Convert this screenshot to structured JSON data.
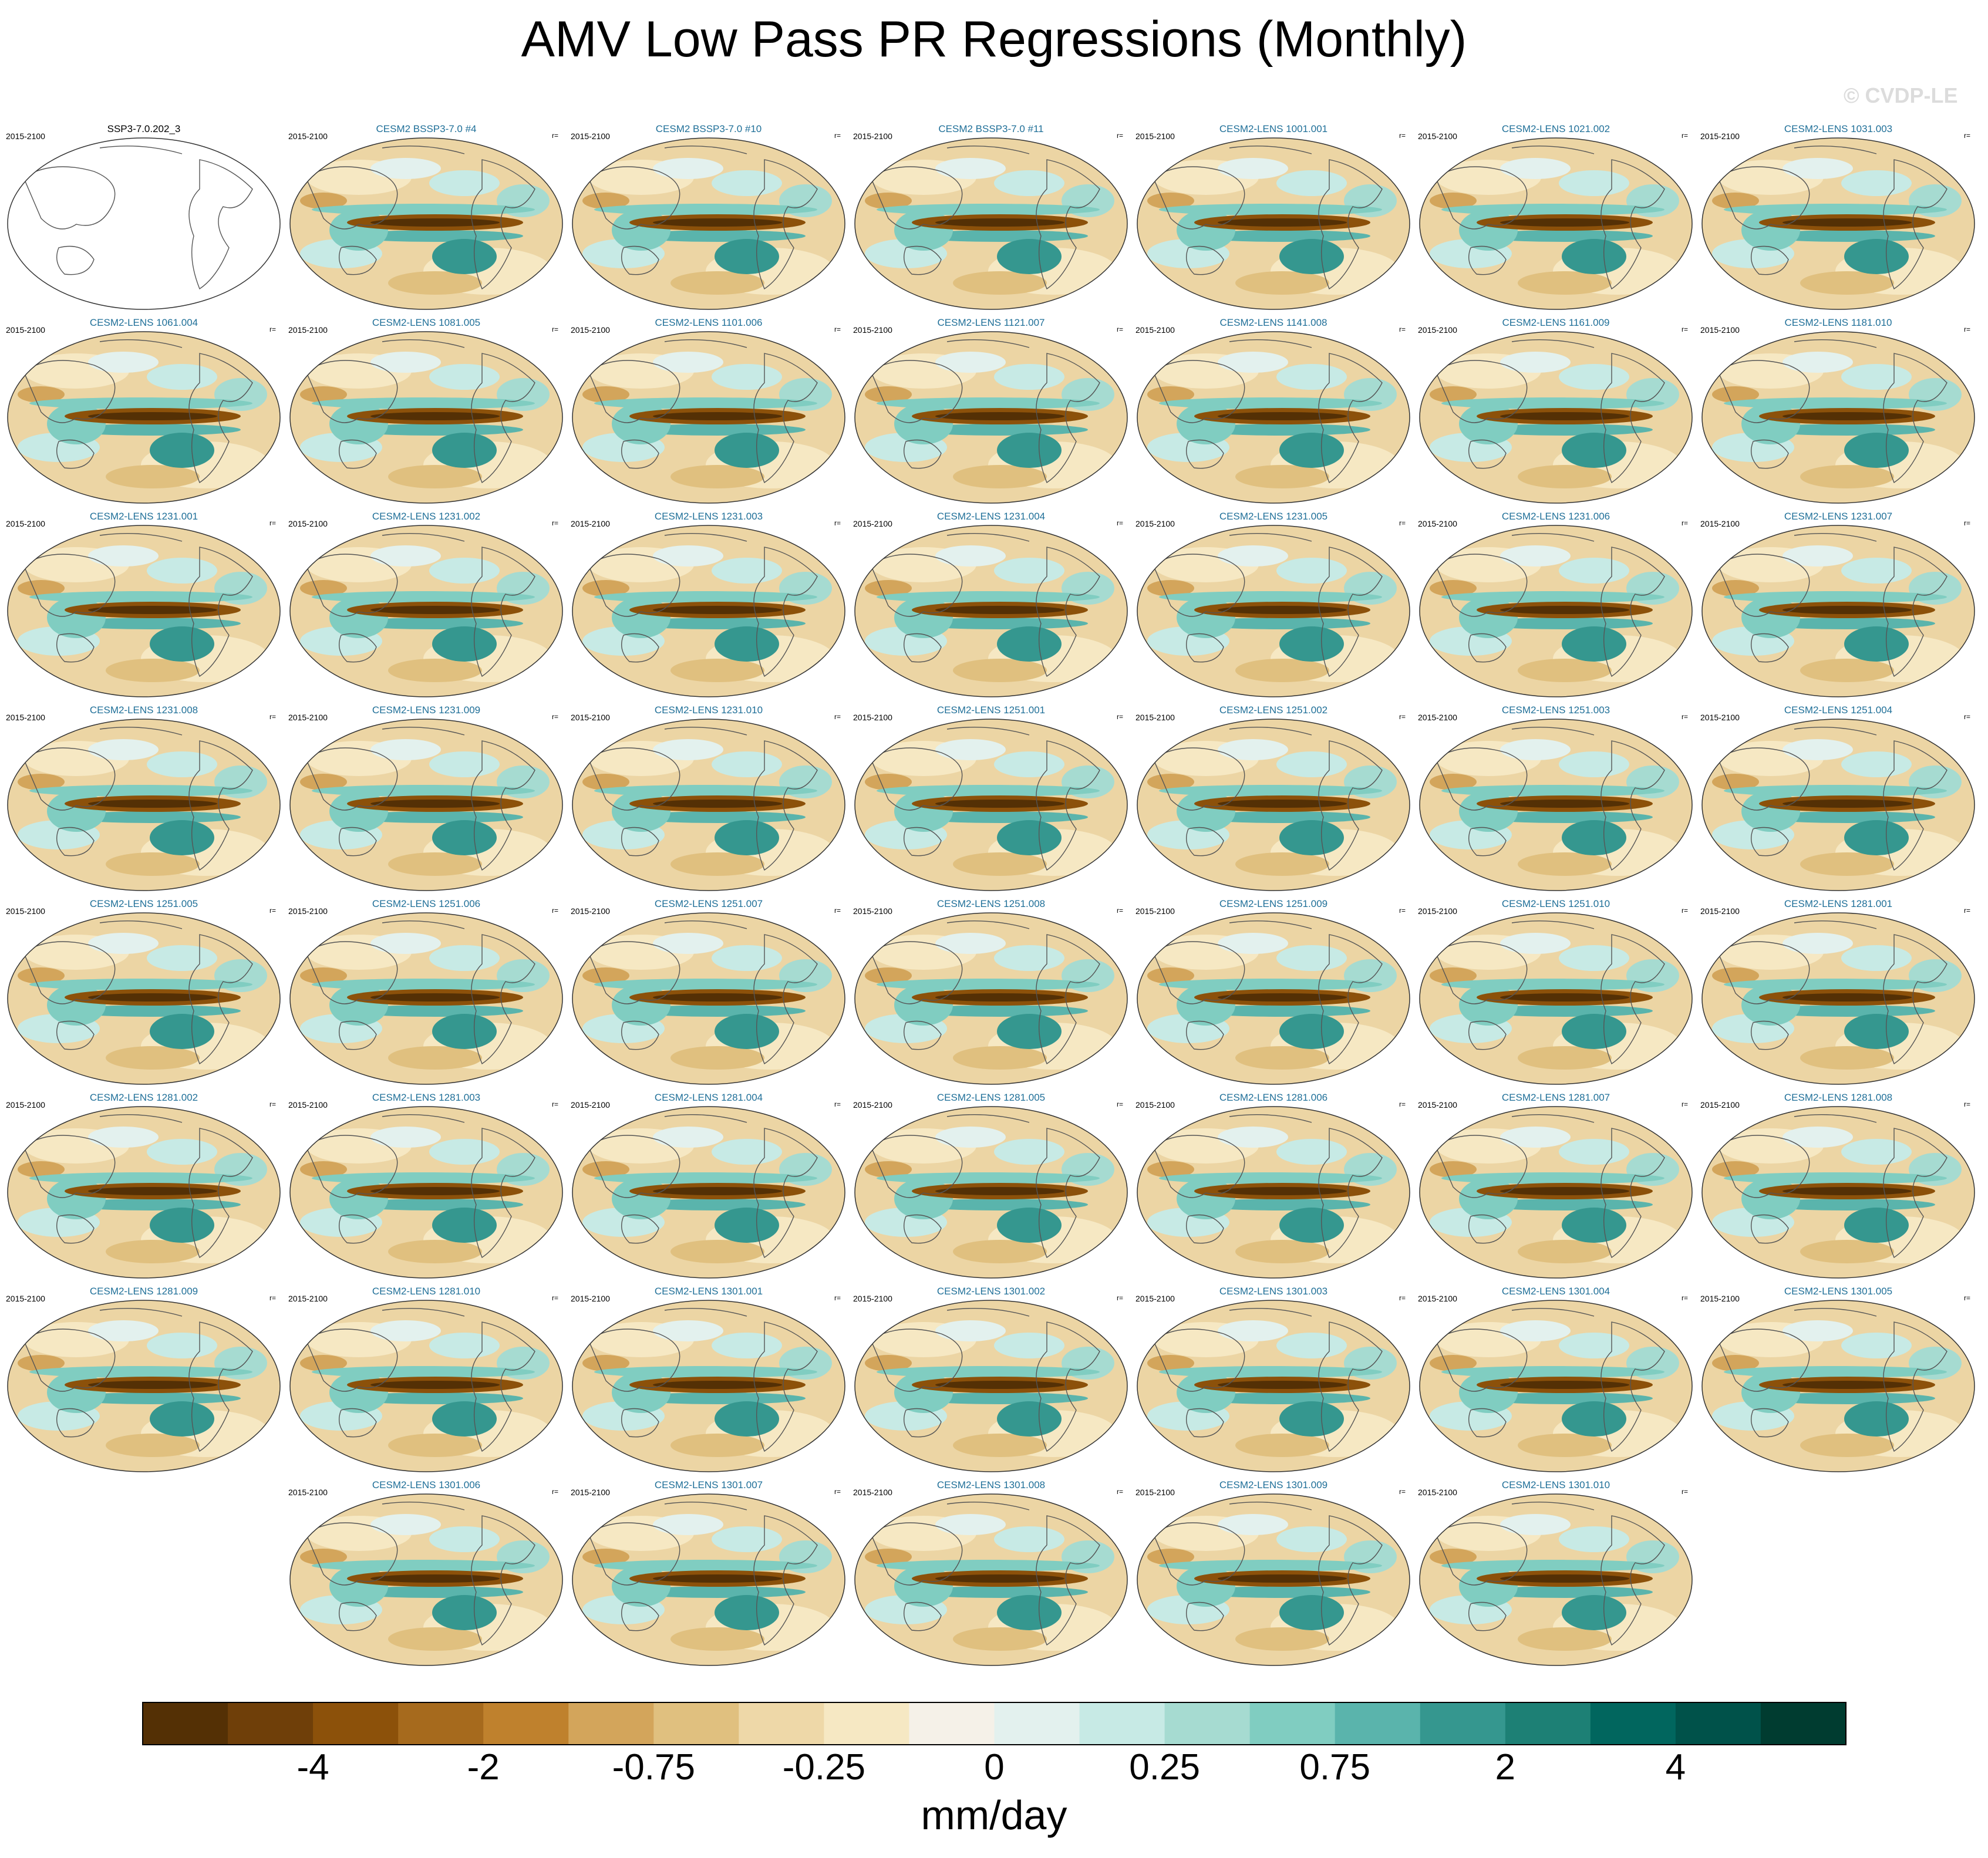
{
  "title": "AMV Low Pass PR Regressions (Monthly)",
  "watermark": "© CVDP-LE",
  "panels": [
    {
      "title": "SSP3-7.0.202_3",
      "years": "2015-2100",
      "corr": "",
      "reference": true
    },
    {
      "title": "CESM2 BSSP3-7.0 #4",
      "years": "2015-2100",
      "corr": "r="
    },
    {
      "title": "CESM2 BSSP3-7.0 #10",
      "years": "2015-2100",
      "corr": "r="
    },
    {
      "title": "CESM2 BSSP3-7.0 #11",
      "years": "2015-2100",
      "corr": "r="
    },
    {
      "title": "CESM2-LENS 1001.001",
      "years": "2015-2100",
      "corr": "r="
    },
    {
      "title": "CESM2-LENS 1021.002",
      "years": "2015-2100",
      "corr": "r="
    },
    {
      "title": "CESM2-LENS 1031.003",
      "years": "2015-2100",
      "corr": "r="
    },
    {
      "title": "CESM2-LENS 1061.004",
      "years": "2015-2100",
      "corr": "r="
    },
    {
      "title": "CESM2-LENS 1081.005",
      "years": "2015-2100",
      "corr": "r="
    },
    {
      "title": "CESM2-LENS 1101.006",
      "years": "2015-2100",
      "corr": "r="
    },
    {
      "title": "CESM2-LENS 1121.007",
      "years": "2015-2100",
      "corr": "r="
    },
    {
      "title": "CESM2-LENS 1141.008",
      "years": "2015-2100",
      "corr": "r="
    },
    {
      "title": "CESM2-LENS 1161.009",
      "years": "2015-2100",
      "corr": "r="
    },
    {
      "title": "CESM2-LENS 1181.010",
      "years": "2015-2100",
      "corr": "r="
    },
    {
      "title": "CESM2-LENS 1231.001",
      "years": "2015-2100",
      "corr": "r="
    },
    {
      "title": "CESM2-LENS 1231.002",
      "years": "2015-2100",
      "corr": "r="
    },
    {
      "title": "CESM2-LENS 1231.003",
      "years": "2015-2100",
      "corr": "r="
    },
    {
      "title": "CESM2-LENS 1231.004",
      "years": "2015-2100",
      "corr": "r="
    },
    {
      "title": "CESM2-LENS 1231.005",
      "years": "2015-2100",
      "corr": "r="
    },
    {
      "title": "CESM2-LENS 1231.006",
      "years": "2015-2100",
      "corr": "r="
    },
    {
      "title": "CESM2-LENS 1231.007",
      "years": "2015-2100",
      "corr": "r="
    },
    {
      "title": "CESM2-LENS 1231.008",
      "years": "2015-2100",
      "corr": "r="
    },
    {
      "title": "CESM2-LENS 1231.009",
      "years": "2015-2100",
      "corr": "r="
    },
    {
      "title": "CESM2-LENS 1231.010",
      "years": "2015-2100",
      "corr": "r="
    },
    {
      "title": "CESM2-LENS 1251.001",
      "years": "2015-2100",
      "corr": "r="
    },
    {
      "title": "CESM2-LENS 1251.002",
      "years": "2015-2100",
      "corr": "r="
    },
    {
      "title": "CESM2-LENS 1251.003",
      "years": "2015-2100",
      "corr": "r="
    },
    {
      "title": "CESM2-LENS 1251.004",
      "years": "2015-2100",
      "corr": "r="
    },
    {
      "title": "CESM2-LENS 1251.005",
      "years": "2015-2100",
      "corr": "r="
    },
    {
      "title": "CESM2-LENS 1251.006",
      "years": "2015-2100",
      "corr": "r="
    },
    {
      "title": "CESM2-LENS 1251.007",
      "years": "2015-2100",
      "corr": "r="
    },
    {
      "title": "CESM2-LENS 1251.008",
      "years": "2015-2100",
      "corr": "r="
    },
    {
      "title": "CESM2-LENS 1251.009",
      "years": "2015-2100",
      "corr": "r="
    },
    {
      "title": "CESM2-LENS 1251.010",
      "years": "2015-2100",
      "corr": "r="
    },
    {
      "title": "CESM2-LENS 1281.001",
      "years": "2015-2100",
      "corr": "r="
    },
    {
      "title": "CESM2-LENS 1281.002",
      "years": "2015-2100",
      "corr": "r="
    },
    {
      "title": "CESM2-LENS 1281.003",
      "years": "2015-2100",
      "corr": "r="
    },
    {
      "title": "CESM2-LENS 1281.004",
      "years": "2015-2100",
      "corr": "r="
    },
    {
      "title": "CESM2-LENS 1281.005",
      "years": "2015-2100",
      "corr": "r="
    },
    {
      "title": "CESM2-LENS 1281.006",
      "years": "2015-2100",
      "corr": "r="
    },
    {
      "title": "CESM2-LENS 1281.007",
      "years": "2015-2100",
      "corr": "r="
    },
    {
      "title": "CESM2-LENS 1281.008",
      "years": "2015-2100",
      "corr": "r="
    },
    {
      "title": "CESM2-LENS 1281.009",
      "years": "2015-2100",
      "corr": "r="
    },
    {
      "title": "CESM2-LENS 1281.010",
      "years": "2015-2100",
      "corr": "r="
    },
    {
      "title": "CESM2-LENS 1301.001",
      "years": "2015-2100",
      "corr": "r="
    },
    {
      "title": "CESM2-LENS 1301.002",
      "years": "2015-2100",
      "corr": "r="
    },
    {
      "title": "CESM2-LENS 1301.003",
      "years": "2015-2100",
      "corr": "r="
    },
    {
      "title": "CESM2-LENS 1301.004",
      "years": "2015-2100",
      "corr": "r="
    },
    {
      "title": "CESM2-LENS 1301.005",
      "years": "2015-2100",
      "corr": "r="
    },
    {
      "title": "CESM2-LENS 1301.006",
      "years": "2015-2100",
      "corr": "r="
    },
    {
      "title": "CESM2-LENS 1301.007",
      "years": "2015-2100",
      "corr": "r="
    },
    {
      "title": "CESM2-LENS 1301.008",
      "years": "2015-2100",
      "corr": "r="
    },
    {
      "title": "CESM2-LENS 1301.009",
      "years": "2015-2100",
      "corr": "r="
    },
    {
      "title": "CESM2-LENS 1301.010",
      "years": "2015-2100",
      "corr": "r="
    }
  ],
  "colorbar": {
    "units": "mm/day",
    "colors": [
      "#543005",
      "#6f3f09",
      "#8c510a",
      "#a66a1d",
      "#bf812d",
      "#d3a55b",
      "#e0c07f",
      "#eed8a8",
      "#f6e8c3",
      "#f5f1e8",
      "#e3f1ee",
      "#c7eae5",
      "#a6dbd1",
      "#80cdc1",
      "#5ab4ac",
      "#35978f",
      "#1d8075",
      "#01665e",
      "#00524a",
      "#003c30"
    ],
    "tick_labels": [
      "-4",
      "-2",
      "-0.75",
      "-0.25",
      "0",
      "0.25",
      "0.75",
      "2",
      "4"
    ],
    "tick_boundary_index": [
      2,
      4,
      6,
      8,
      10,
      12,
      14,
      16,
      18
    ]
  }
}
